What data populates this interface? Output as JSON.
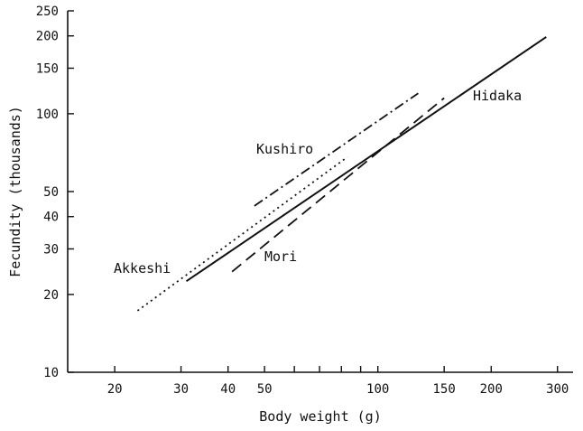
{
  "chart_data": {
    "type": "line",
    "xlabel": "Body weight (g)",
    "ylabel": "Fecundity (thousands)",
    "x_scale": "log",
    "y_scale": "log",
    "xlim": [
      15,
      330
    ],
    "ylim": [
      10,
      250
    ],
    "grid": false,
    "legend": "none (series labeled directly on plot)",
    "x_ticks": [
      {
        "value": 20,
        "label": "20"
      },
      {
        "value": 30,
        "label": "30"
      },
      {
        "value": 40,
        "label": "40"
      },
      {
        "value": 50,
        "label": "50"
      },
      {
        "value": 60,
        "label": ""
      },
      {
        "value": 70,
        "label": ""
      },
      {
        "value": 80,
        "label": ""
      },
      {
        "value": 90,
        "label": ""
      },
      {
        "value": 100,
        "label": "100"
      },
      {
        "value": 150,
        "label": "150"
      },
      {
        "value": 200,
        "label": "200"
      },
      {
        "value": 300,
        "label": "300"
      }
    ],
    "y_ticks": [
      {
        "value": 10,
        "label": "10"
      },
      {
        "value": 20,
        "label": "20"
      },
      {
        "value": 30,
        "label": "30"
      },
      {
        "value": 40,
        "label": "40"
      },
      {
        "value": 50,
        "label": "50"
      },
      {
        "value": 100,
        "label": "100"
      },
      {
        "value": 150,
        "label": "150"
      },
      {
        "value": 200,
        "label": "200"
      },
      {
        "value": 250,
        "label": "250"
      }
    ],
    "series": [
      {
        "name": "Hidaka",
        "style": "solid",
        "x": [
          31,
          280
        ],
        "y": [
          22.5,
          198
        ]
      },
      {
        "name": "Akkeshi",
        "style": "dotted",
        "x": [
          23,
          83
        ],
        "y": [
          17.3,
          68
        ]
      },
      {
        "name": "Kushiro",
        "style": "dash-dot",
        "x": [
          47,
          128
        ],
        "y": [
          44,
          120
        ]
      },
      {
        "name": "Mori",
        "style": "dashed",
        "x": [
          41,
          150
        ],
        "y": [
          24.5,
          115
        ]
      }
    ]
  }
}
